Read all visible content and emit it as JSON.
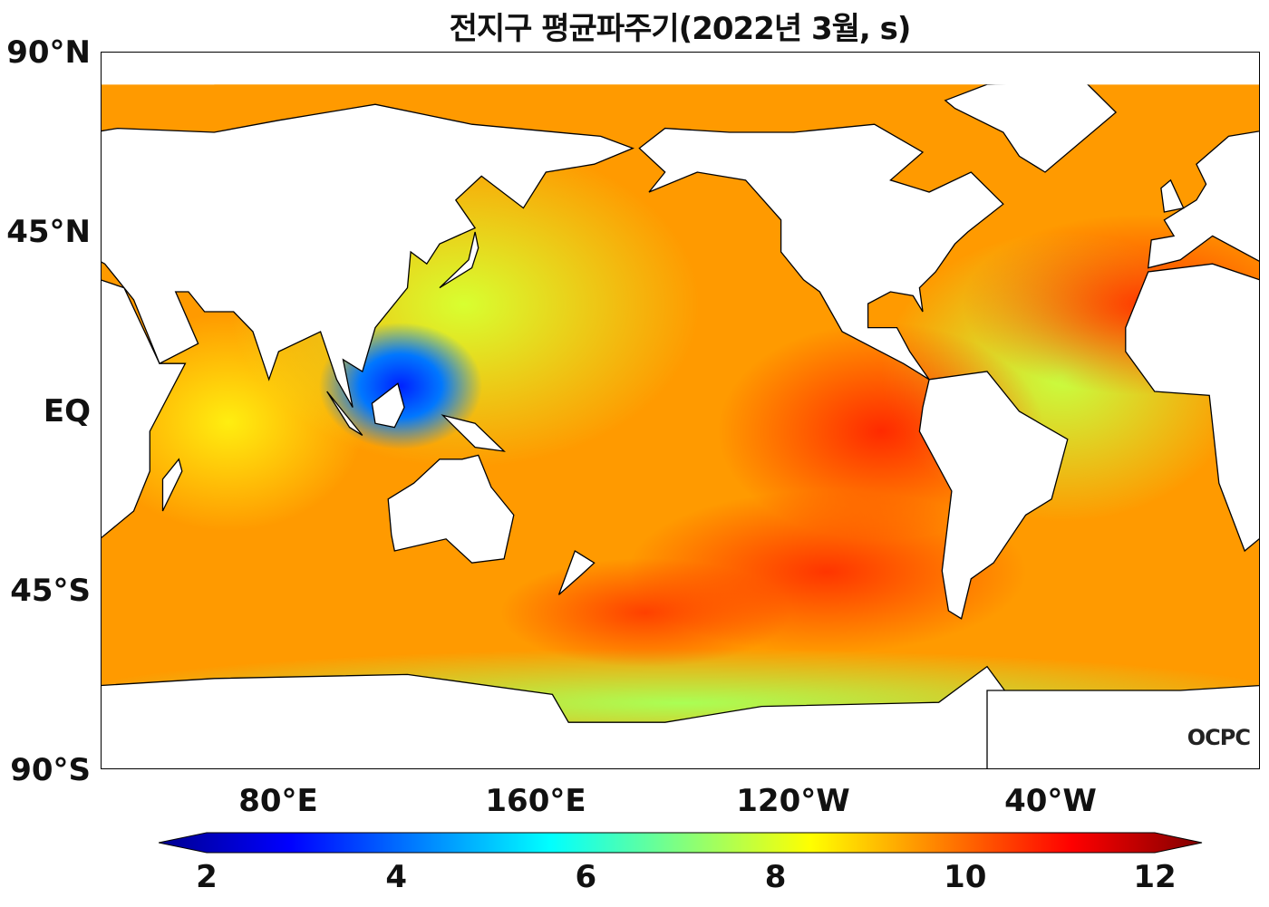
{
  "title": "전지구 평균파주기(2022년 3월, s)",
  "logo": "OCPC",
  "y_axis_labels": [
    "90°N",
    "45°N",
    "EQ",
    "45°S",
    "90°S"
  ],
  "x_axis_labels": [
    "80°E",
    "160°E",
    "120°W",
    "40°W"
  ],
  "colorbar": {
    "ticks": [
      "2",
      "4",
      "6",
      "8",
      "10",
      "12"
    ],
    "min": 2,
    "max": 12,
    "extend": "both",
    "colormap": [
      "#00008f",
      "#0000ff",
      "#0080ff",
      "#00ffff",
      "#80ff80",
      "#ffff00",
      "#ff8000",
      "#ff0000",
      "#800000"
    ]
  }
}
